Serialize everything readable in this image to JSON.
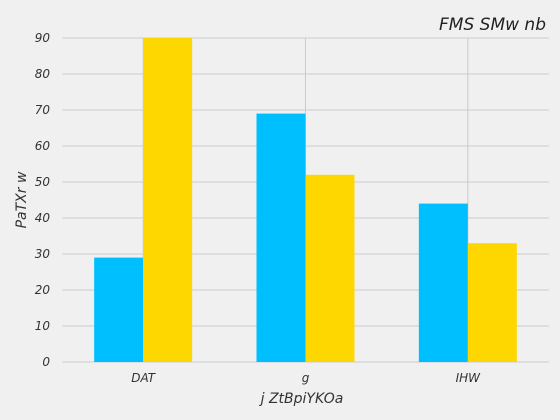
{
  "chart_data": {
    "type": "bar",
    "title": "FMS  SMw nb",
    "xlabel": "j ZtBpiYKOa",
    "ylabel": "PaTXr w",
    "categories": [
      "DAT",
      "g",
      "IHW"
    ],
    "series": [
      {
        "values": [
          29,
          69,
          44
        ],
        "color": "#00bfff"
      },
      {
        "values": [
          90,
          52,
          33
        ],
        "color": "#ffd700"
      }
    ],
    "ylim": [
      0,
      90
    ],
    "yticks": [
      0,
      10,
      20,
      30,
      40,
      50,
      60,
      70,
      80,
      90
    ],
    "grid": true,
    "legend": "none"
  }
}
